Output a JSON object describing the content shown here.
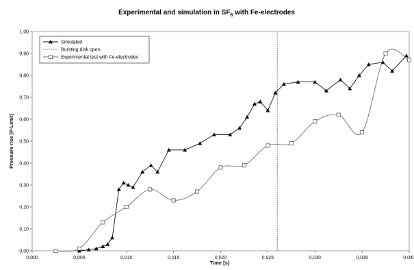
{
  "chart_data": {
    "type": "line",
    "title": "Experimental and simulation in SF",
    "title_subscript": "6",
    "title_suffix": " with Fe-electrodes",
    "xlabel": "Time [s]",
    "ylabel": "Pressure rise [P·Limit]",
    "xlim": [
      0.0,
      0.04
    ],
    "ylim": [
      0.0,
      1.0
    ],
    "x_ticks": [
      "0,000",
      "0,005",
      "0,010",
      "0,015",
      "0,020",
      "0,025",
      "0,030",
      "0,035",
      "0,040"
    ],
    "y_ticks": [
      "0,00",
      "0,10",
      "0,20",
      "0,30",
      "0,40",
      "0,50",
      "0,60",
      "0,70",
      "0,80",
      "0,90",
      "1,00"
    ],
    "grid": false,
    "legend_position": "top-left",
    "vertical_marker": {
      "name": "Bursting disk open",
      "x": 0.026
    },
    "series": [
      {
        "name": "Simulated",
        "marker": "triangle",
        "color": "#000000",
        "points": [
          [
            0.005,
            0.0
          ],
          [
            0.006,
            0.005
          ],
          [
            0.0068,
            0.01
          ],
          [
            0.0075,
            0.02
          ],
          [
            0.008,
            0.03
          ],
          [
            0.0085,
            0.06
          ],
          [
            0.0092,
            0.28
          ],
          [
            0.0097,
            0.31
          ],
          [
            0.0102,
            0.3
          ],
          [
            0.0107,
            0.29
          ],
          [
            0.0117,
            0.36
          ],
          [
            0.0126,
            0.39
          ],
          [
            0.0133,
            0.36
          ],
          [
            0.0145,
            0.46
          ],
          [
            0.0162,
            0.46
          ],
          [
            0.0178,
            0.49
          ],
          [
            0.0193,
            0.53
          ],
          [
            0.021,
            0.53
          ],
          [
            0.022,
            0.56
          ],
          [
            0.0228,
            0.61
          ],
          [
            0.0236,
            0.67
          ],
          [
            0.0242,
            0.68
          ],
          [
            0.025,
            0.64
          ],
          [
            0.0258,
            0.72
          ],
          [
            0.0267,
            0.76
          ],
          [
            0.0282,
            0.77
          ],
          [
            0.03,
            0.77
          ],
          [
            0.0312,
            0.73
          ],
          [
            0.0327,
            0.78
          ],
          [
            0.0337,
            0.74
          ],
          [
            0.0347,
            0.8
          ],
          [
            0.0357,
            0.85
          ],
          [
            0.0372,
            0.86
          ],
          [
            0.0382,
            0.82
          ],
          [
            0.0397,
            0.89
          ]
        ]
      },
      {
        "name": "Experimental test with Fe-electrodes",
        "marker": "square",
        "color": "#000000",
        "points": [
          [
            0.0025,
            0.0
          ],
          [
            0.005,
            0.01
          ],
          [
            0.0075,
            0.13
          ],
          [
            0.01,
            0.2
          ],
          [
            0.0125,
            0.28
          ],
          [
            0.015,
            0.23
          ],
          [
            0.0175,
            0.27
          ],
          [
            0.02,
            0.38
          ],
          [
            0.0225,
            0.39
          ],
          [
            0.025,
            0.48
          ],
          [
            0.0275,
            0.49
          ],
          [
            0.03,
            0.59
          ],
          [
            0.0325,
            0.62
          ],
          [
            0.035,
            0.54
          ],
          [
            0.0375,
            0.9
          ],
          [
            0.04,
            0.87
          ]
        ]
      }
    ]
  }
}
